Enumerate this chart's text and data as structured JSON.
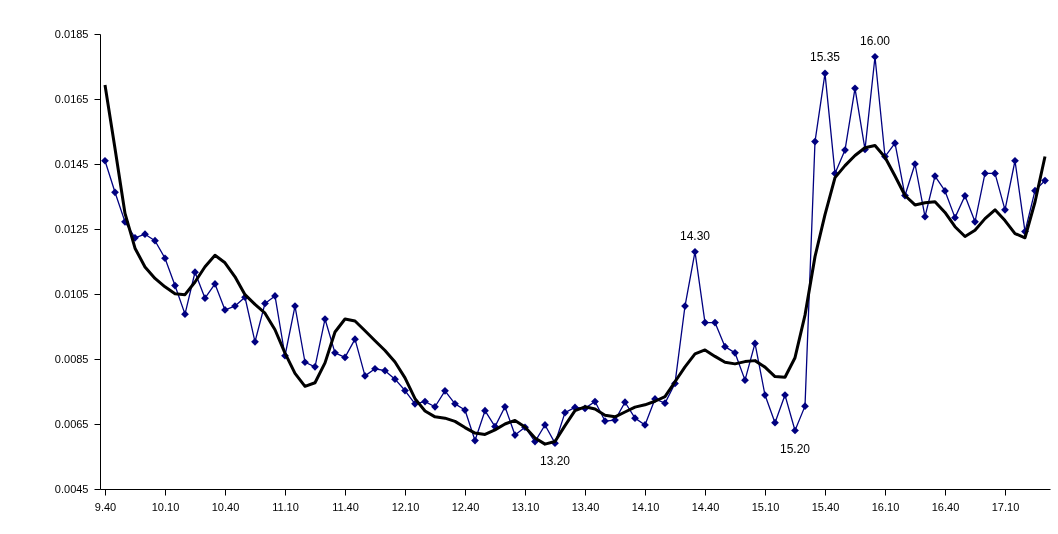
{
  "chart_data": {
    "type": "line",
    "ylim": [
      0.0045,
      0.0185
    ],
    "yticks": [
      0.0045,
      0.0065,
      0.0085,
      0.0105,
      0.0125,
      0.0145,
      0.0165,
      0.0185
    ],
    "grid": false,
    "legend": false,
    "categories": [
      "9.40",
      null,
      null,
      null,
      null,
      null,
      "10.10",
      null,
      null,
      null,
      null,
      null,
      "10.40",
      null,
      null,
      null,
      null,
      null,
      "11.10",
      null,
      null,
      null,
      null,
      null,
      "11.40",
      null,
      null,
      null,
      null,
      null,
      "12.10",
      null,
      null,
      null,
      null,
      null,
      "12.40",
      null,
      null,
      null,
      null,
      null,
      "13.10",
      null,
      null,
      null,
      null,
      null,
      "13.40",
      null,
      null,
      null,
      null,
      null,
      "14.10",
      null,
      null,
      null,
      null,
      null,
      "14.40",
      null,
      null,
      null,
      null,
      null,
      "15.10",
      null,
      null,
      null,
      null,
      null,
      "15.40",
      null,
      null,
      null,
      null,
      null,
      "16.10",
      null,
      null,
      null,
      null,
      null,
      "16.40",
      null,
      null,
      null,
      null,
      null,
      "17.10",
      null,
      null,
      null,
      null
    ],
    "series": [
      {
        "color": "#000080",
        "marker": "diamond",
        "line_style": "solid",
        "values": [
          0.0146,
          0.01363,
          0.01272,
          0.01223,
          0.01234,
          0.01214,
          0.0116,
          0.01076,
          0.00988,
          0.01117,
          0.01037,
          0.01081,
          0.01001,
          0.01013,
          0.0104,
          0.00903,
          0.01021,
          0.01044,
          0.0086,
          0.01013,
          0.0084,
          0.00826,
          0.00973,
          0.00869,
          0.00855,
          0.00911,
          0.00798,
          0.0082,
          0.00814,
          0.00788,
          0.00753,
          0.00712,
          0.00719,
          0.00703,
          0.00752,
          0.00712,
          0.00693,
          0.00599,
          0.00691,
          0.00642,
          0.00703,
          0.00616,
          0.0064,
          0.00596,
          0.00647,
          0.00591,
          0.00685,
          0.00701,
          0.00698,
          0.00719,
          0.00659,
          0.00662,
          0.00717,
          0.00668,
          0.00647,
          0.00727,
          0.00714,
          0.00775,
          0.01013,
          0.0118,
          0.00962,
          0.00962,
          0.00888,
          0.00869,
          0.00785,
          0.00898,
          0.00739,
          0.00654,
          0.00739,
          0.0063,
          0.00705,
          0.01519,
          0.01729,
          0.01421,
          0.01493,
          0.01683,
          0.01495,
          0.0178,
          0.01473,
          0.01514,
          0.01353,
          0.0145,
          0.01288,
          0.01413,
          0.01367,
          0.01285,
          0.01352,
          0.01272,
          0.01421,
          0.01421,
          0.01309,
          0.0146,
          0.01242,
          0.01368,
          0.01399
        ]
      },
      {
        "color": "#000000",
        "marker": "none",
        "line_style": "solid",
        "values": [
          0.01693,
          0.01498,
          0.01298,
          0.01191,
          0.01133,
          0.01098,
          0.01072,
          0.01051,
          0.01048,
          0.01087,
          0.01134,
          0.01169,
          0.01146,
          0.01103,
          0.01048,
          0.01018,
          0.00991,
          0.0094,
          0.00868,
          0.00806,
          0.00766,
          0.00777,
          0.00838,
          0.00933,
          0.00973,
          0.00967,
          0.00937,
          0.00906,
          0.00876,
          0.00841,
          0.00792,
          0.00728,
          0.0069,
          0.00672,
          0.00668,
          0.00658,
          0.00639,
          0.00622,
          0.00618,
          0.00632,
          0.0065,
          0.00661,
          0.00641,
          0.00607,
          0.00588,
          0.00596,
          0.00645,
          0.00691,
          0.00703,
          0.00696,
          0.00677,
          0.00672,
          0.00687,
          0.00702,
          0.00709,
          0.0072,
          0.00734,
          0.0078,
          0.00826,
          0.00866,
          0.00878,
          0.00858,
          0.0084,
          0.00835,
          0.00842,
          0.00845,
          0.00825,
          0.00796,
          0.00794,
          0.00854,
          0.00985,
          0.01165,
          0.01294,
          0.01408,
          0.01445,
          0.01476,
          0.015,
          0.01507,
          0.01471,
          0.01413,
          0.01353,
          0.01324,
          0.01331,
          0.01334,
          0.01301,
          0.01257,
          0.01227,
          0.01246,
          0.01282,
          0.01309,
          0.01276,
          0.01236,
          0.01223,
          0.01333,
          0.01473
        ]
      }
    ],
    "annotations": [
      {
        "text": "14.30",
        "y": 0.0118
      },
      {
        "text": "13.20",
        "y": 0.00591
      },
      {
        "text": "15.20",
        "y": 0.0063
      },
      {
        "text": "15.35",
        "y": 0.01729
      },
      {
        "text": "16.00",
        "y": 0.0178
      }
    ]
  }
}
